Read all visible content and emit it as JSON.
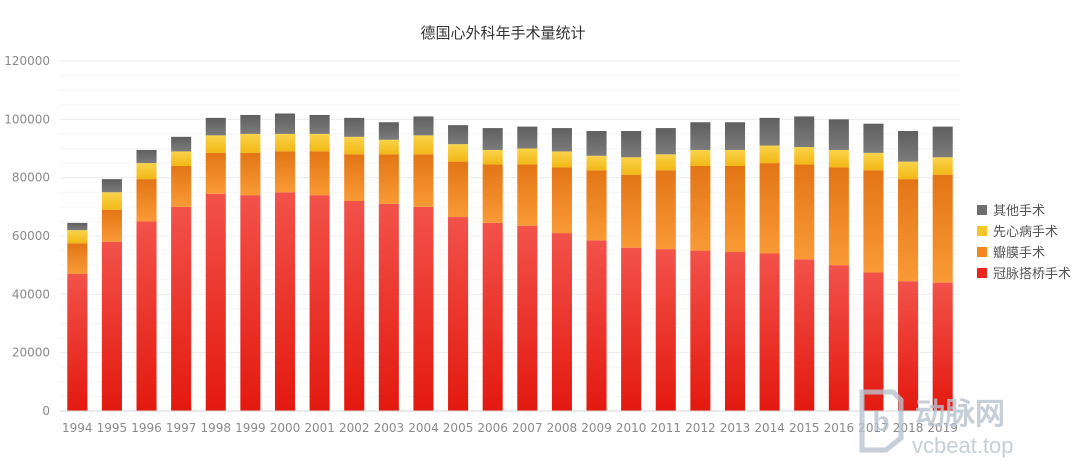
{
  "chart_data": {
    "type": "bar",
    "stacked": true,
    "title": "德国心外科年手术量统计",
    "xlabel": "",
    "ylabel": "",
    "ylim": [
      0,
      120000
    ],
    "yticks": [
      0,
      20000,
      40000,
      60000,
      80000,
      100000,
      120000
    ],
    "ytick_labels": [
      "0",
      "20000",
      "40000",
      "60000",
      "80000",
      "100000",
      "120000"
    ],
    "grid": true,
    "legend_position": "right",
    "categories": [
      "1994",
      "1995",
      "1996",
      "1997",
      "1998",
      "1999",
      "2000",
      "2001",
      "2002",
      "2003",
      "2004",
      "2005",
      "2006",
      "2007",
      "2008",
      "2009",
      "2010",
      "2011",
      "2012",
      "2013",
      "2014",
      "2015",
      "2016",
      "2017",
      "2018",
      "2019"
    ],
    "series": [
      {
        "name": "冠脉搭桥手术",
        "color": "#e8261b",
        "values": [
          47000,
          58000,
          65000,
          70000,
          74500,
          74000,
          75000,
          74000,
          72000,
          71000,
          70000,
          66500,
          64500,
          63500,
          61000,
          58500,
          56000,
          55500,
          55000,
          54500,
          54000,
          52000,
          50000,
          47500,
          44500,
          44000
        ]
      },
      {
        "name": "瓣膜手术",
        "color": "#f48521",
        "values": [
          10500,
          11000,
          14500,
          14000,
          14000,
          14500,
          14000,
          15000,
          16000,
          17000,
          18000,
          19000,
          20000,
          21000,
          22500,
          24000,
          25000,
          27000,
          29000,
          29500,
          31000,
          32500,
          33500,
          35000,
          35000,
          37000
        ]
      },
      {
        "name": "先心病手术",
        "color": "#f7c528",
        "values": [
          4500,
          6000,
          5500,
          5000,
          6000,
          6500,
          6000,
          6000,
          6000,
          5000,
          6500,
          6000,
          5000,
          5500,
          5500,
          5000,
          6000,
          5500,
          5500,
          5500,
          6000,
          6000,
          6000,
          6000,
          6000,
          6000
        ]
      },
      {
        "name": "其他手术",
        "color": "#6e6e6e",
        "values": [
          2500,
          4500,
          4500,
          5000,
          6000,
          6500,
          7000,
          6500,
          6500,
          6000,
          6500,
          6500,
          7500,
          7500,
          8000,
          8500,
          9000,
          9000,
          9500,
          9500,
          9500,
          10500,
          10500,
          10000,
          10500,
          10500
        ]
      }
    ]
  },
  "watermark": {
    "text_cn": "动脉网",
    "text_en": "vcbeat.top"
  }
}
